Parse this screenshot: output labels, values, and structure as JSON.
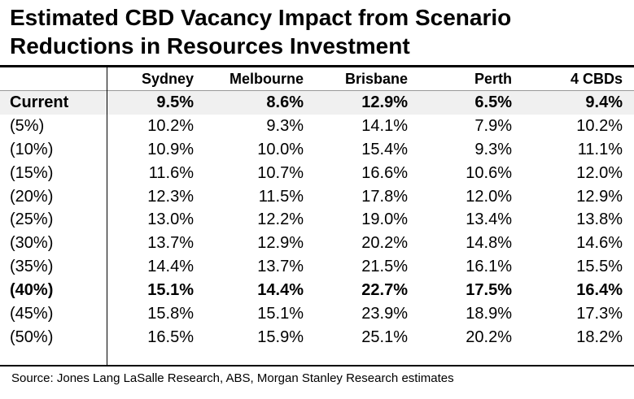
{
  "title": "Estimated CBD Vacancy Impact from Scenario Reductions in Resources Investment",
  "source": "Source: Jones Lang LaSalle Research, ABS, Morgan Stanley Research estimates",
  "chart_data": {
    "type": "table",
    "title": "Estimated CBD Vacancy Impact from Scenario Reductions in Resources Investment",
    "columns": [
      "",
      "Sydney",
      "Melbourne",
      "Brisbane",
      "Perth",
      "4 CBDs"
    ],
    "rows": [
      {
        "label": "Current",
        "values": [
          "9.5%",
          "8.6%",
          "12.9%",
          "6.5%",
          "9.4%"
        ],
        "bold": true,
        "shaded": true
      },
      {
        "label": "(5%)",
        "values": [
          "10.2%",
          "9.3%",
          "14.1%",
          "7.9%",
          "10.2%"
        ]
      },
      {
        "label": "(10%)",
        "values": [
          "10.9%",
          "10.0%",
          "15.4%",
          "9.3%",
          "11.1%"
        ]
      },
      {
        "label": "(15%)",
        "values": [
          "11.6%",
          "10.7%",
          "16.6%",
          "10.6%",
          "12.0%"
        ]
      },
      {
        "label": "(20%)",
        "values": [
          "12.3%",
          "11.5%",
          "17.8%",
          "12.0%",
          "12.9%"
        ]
      },
      {
        "label": "(25%)",
        "values": [
          "13.0%",
          "12.2%",
          "19.0%",
          "13.4%",
          "13.8%"
        ]
      },
      {
        "label": "(30%)",
        "values": [
          "13.7%",
          "12.9%",
          "20.2%",
          "14.8%",
          "14.6%"
        ]
      },
      {
        "label": "(35%)",
        "values": [
          "14.4%",
          "13.7%",
          "21.5%",
          "16.1%",
          "15.5%"
        ]
      },
      {
        "label": "(40%)",
        "values": [
          "15.1%",
          "14.4%",
          "22.7%",
          "17.5%",
          "16.4%"
        ],
        "bold": true
      },
      {
        "label": "(45%)",
        "values": [
          "15.8%",
          "15.1%",
          "23.9%",
          "18.9%",
          "17.3%"
        ]
      },
      {
        "label": "(50%)",
        "values": [
          "16.5%",
          "15.9%",
          "25.1%",
          "20.2%",
          "18.2%"
        ]
      }
    ]
  }
}
